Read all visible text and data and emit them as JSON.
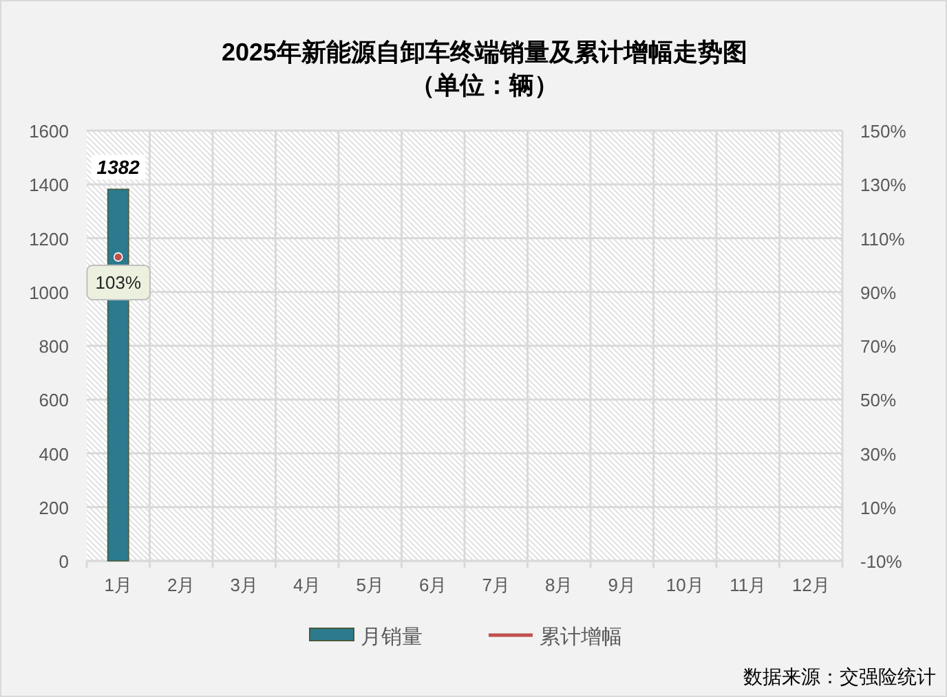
{
  "chart_data": {
    "type": "bar",
    "title": "2025年新能源自卸车终端销量及累计增幅走势图",
    "subtitle": "（单位：辆）",
    "categories": [
      "1月",
      "2月",
      "3月",
      "4月",
      "5月",
      "6月",
      "7月",
      "8月",
      "9月",
      "10月",
      "11月",
      "12月"
    ],
    "series": [
      {
        "name": "月销量",
        "color": "#2b7a8e",
        "values": [
          1382,
          null,
          null,
          null,
          null,
          null,
          null,
          null,
          null,
          null,
          null,
          null
        ],
        "value_labels": [
          "1382",
          null,
          null,
          null,
          null,
          null,
          null,
          null,
          null,
          null,
          null,
          null
        ]
      },
      {
        "name": "累计增幅",
        "type": "line",
        "axis": "y2",
        "color": "#c0504d",
        "marker": "circle",
        "values": [
          103,
          null,
          null,
          null,
          null,
          null,
          null,
          null,
          null,
          null,
          null,
          null
        ],
        "value_labels": [
          "103%",
          null,
          null,
          null,
          null,
          null,
          null,
          null,
          null,
          null,
          null,
          null
        ]
      }
    ],
    "ylim": [
      0,
      1600
    ],
    "yticks": [
      0,
      200,
      400,
      600,
      800,
      1000,
      1200,
      1400,
      1600
    ],
    "y2lim": [
      -10,
      150
    ],
    "y2ticks": [
      {
        "value": -10,
        "label": "-10%"
      },
      {
        "value": 10,
        "label": "10%"
      },
      {
        "value": 30,
        "label": "30%"
      },
      {
        "value": 50,
        "label": "50%"
      },
      {
        "value": 70,
        "label": "70%"
      },
      {
        "value": 90,
        "label": "90%"
      },
      {
        "value": 110,
        "label": "110%"
      },
      {
        "value": 130,
        "label": "130%"
      },
      {
        "value": 150,
        "label": "150%"
      }
    ],
    "grid": true,
    "legend": "bottom",
    "annotations": [
      "数据来源：交强险统计"
    ]
  }
}
